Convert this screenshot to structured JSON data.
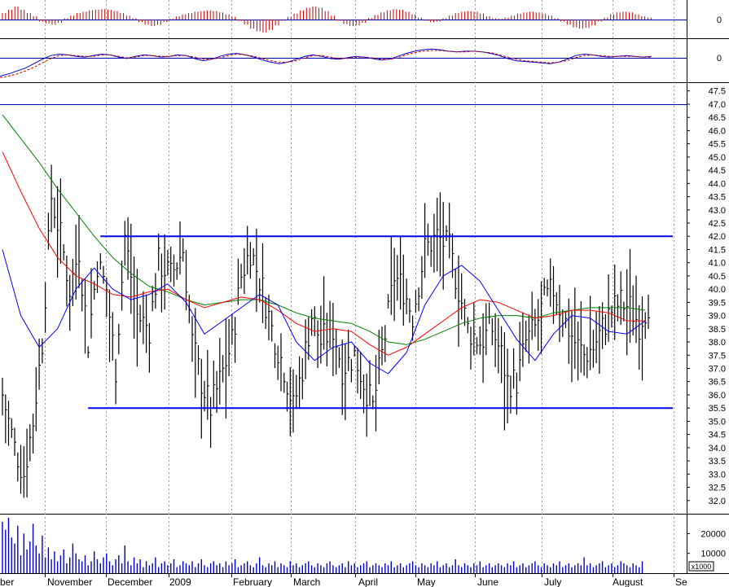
{
  "chart_data": [
    {
      "type": "bar",
      "panel": "oscillator-histogram",
      "zero_label": "0",
      "colors": {
        "bar": "#cc0000",
        "zero_line": "#0000aa"
      },
      "bars": [
        1,
        1.5,
        2,
        1.5,
        1,
        0.5,
        -0.3,
        -0.6,
        -0.8,
        -0.5,
        0.2,
        0.6,
        1,
        1.2,
        1.4,
        1.5,
        1.6,
        1.5,
        1.3,
        1,
        0.6,
        0.2,
        -0.4,
        -0.8,
        -1,
        -0.8,
        -0.4,
        0.1,
        0.5,
        0.8,
        1,
        1.2,
        1.3,
        1.4,
        1.3,
        1.1,
        0.8,
        0.4,
        -0.2,
        -0.8,
        -1.4,
        -1.8,
        -2,
        -1.6,
        -0.9,
        -0.2,
        0.4,
        0.9,
        1.4,
        1.8,
        2,
        1.8,
        1.3,
        0.6,
        -0.2,
        -0.7,
        -1,
        -0.9,
        -0.5,
        0.2,
        0.7,
        1.1,
        1.4,
        1.6,
        1.5,
        1.2,
        0.8,
        0.3,
        -0.2,
        -0.4,
        -0.3,
        0.2,
        0.6,
        1,
        1.2,
        1.3,
        1.2,
        0.9,
        0.5,
        0.2,
        0.1,
        0.3,
        0.6,
        0.9,
        1.1,
        1.2,
        1.1,
        0.9,
        0.6,
        0.2,
        -0.3,
        -0.8,
        -1.2,
        -1.4,
        -1.3,
        -0.9,
        -0.3,
        0.3,
        0.8,
        1.1,
        1.2,
        1.1,
        0.8,
        0.5,
        0.3
      ]
    },
    {
      "type": "line",
      "panel": "oscillator-lines",
      "zero_label": "0",
      "colors": {
        "main": "#0000cc",
        "signal": "#cc0000",
        "zero_line": "#0000aa"
      },
      "series": [
        {
          "role": "main",
          "values": [
            -2.5,
            -2.2,
            -1.8,
            -1.4,
            -0.8,
            -0.2,
            0.3,
            0.5,
            0.4,
            0.2,
            0.1,
            0.3,
            0.5,
            0.4,
            0.1,
            -0.1,
            0.2,
            0.4,
            0.3,
            0.1,
            0.2,
            0.4,
            0.3,
            -0.1,
            -0.4,
            -0.2,
            0.2,
            0.5,
            0.6,
            0.4,
            0.1,
            -0.3,
            -0.6,
            -0.8,
            -0.6,
            -0.2,
            0.2,
            0.4,
            0.2,
            -0.1,
            -0.2,
            0,
            0.2,
            0.1,
            -0.1,
            -0.3,
            -0.2,
            0.2,
            0.6,
            0.9,
            1.1,
            1.2,
            1.1,
            0.9,
            0.8,
            0.9,
            0.9,
            0.8,
            0.6,
            0.3,
            -0.1,
            -0.4,
            -0.5,
            -0.6,
            -0.7,
            -0.8,
            -0.6,
            -0.2,
            0.3,
            0.5,
            0.4,
            0.2,
            0.1,
            0.2,
            0.3,
            0.2,
            0.1,
            0.2
          ]
        },
        {
          "role": "signal",
          "values": [
            -2.7,
            -2.5,
            -2.2,
            -1.8,
            -1.3,
            -0.7,
            -0.1,
            0.3,
            0.4,
            0.3,
            0.2,
            0.2,
            0.4,
            0.4,
            0.2,
            0,
            0.1,
            0.3,
            0.3,
            0.2,
            0.2,
            0.3,
            0.3,
            0.1,
            -0.2,
            -0.2,
            0,
            0.3,
            0.5,
            0.4,
            0.2,
            -0.1,
            -0.4,
            -0.6,
            -0.6,
            -0.4,
            0,
            0.3,
            0.3,
            0.1,
            -0.1,
            -0.1,
            0.1,
            0.1,
            0,
            -0.2,
            -0.2,
            0,
            0.4,
            0.7,
            0.9,
            1,
            1,
            0.9,
            0.8,
            0.8,
            0.9,
            0.8,
            0.7,
            0.4,
            0.1,
            -0.2,
            -0.4,
            -0.5,
            -0.6,
            -0.7,
            -0.6,
            -0.4,
            0,
            0.3,
            0.4,
            0.3,
            0.2,
            0.2,
            0.2,
            0.2,
            0.1,
            0.1
          ]
        }
      ]
    },
    {
      "type": "ohlc",
      "panel": "price",
      "y_ticks": [
        "32.0",
        "32.5",
        "33.0",
        "33.5",
        "34.0",
        "34.5",
        "35.0",
        "35.5",
        "36.0",
        "36.5",
        "37.0",
        "37.5",
        "38.0",
        "38.5",
        "39.0",
        "39.5",
        "40.0",
        "40.5",
        "41.0",
        "41.5",
        "42.0",
        "42.5",
        "43.0",
        "43.5",
        "44.0",
        "44.5",
        "45.0",
        "45.5",
        "46.0",
        "46.5",
        "47.0",
        "47.5"
      ],
      "ylim": [
        31.5,
        47.8
      ],
      "bar_count": 212,
      "colors": {
        "bar": "#000000",
        "ma_fast": "#0000ff",
        "ma_mid": "#ff0000",
        "ma_slow": "#008000",
        "channel": "#0000ff",
        "marker_line": "#0000aa",
        "month_grid": "#999999"
      },
      "marker_line_value": 47.0,
      "channel": {
        "upper": 42.0,
        "lower": 35.5,
        "upper_from_bar": 32,
        "lower_from_bar": 28
      },
      "waypoints": [
        [
          0,
          36
        ],
        [
          4,
          34
        ],
        [
          7,
          33
        ],
        [
          10,
          35
        ],
        [
          13,
          38
        ],
        [
          16,
          43.5
        ],
        [
          19,
          42
        ],
        [
          22,
          40
        ],
        [
          25,
          41.5
        ],
        [
          28,
          38
        ],
        [
          31,
          41
        ],
        [
          34,
          40
        ],
        [
          37,
          37
        ],
        [
          40,
          42
        ],
        [
          44,
          39
        ],
        [
          48,
          38.5
        ],
        [
          51,
          41
        ],
        [
          55,
          40.5
        ],
        [
          59,
          41.5
        ],
        [
          62,
          38
        ],
        [
          65,
          36.5
        ],
        [
          68,
          35.5
        ],
        [
          71,
          36.5
        ],
        [
          75,
          38
        ],
        [
          78,
          40.5
        ],
        [
          81,
          41.5
        ],
        [
          85,
          40
        ],
        [
          88,
          38.5
        ],
        [
          92,
          37
        ],
        [
          95,
          35.5
        ],
        [
          98,
          37
        ],
        [
          101,
          39
        ],
        [
          104,
          38
        ],
        [
          108,
          38.5
        ],
        [
          111,
          37
        ],
        [
          115,
          37.5
        ],
        [
          118,
          36.5
        ],
        [
          121,
          35.5
        ],
        [
          124,
          37.5
        ],
        [
          128,
          40.5
        ],
        [
          131,
          40
        ],
        [
          134,
          39
        ],
        [
          138,
          41.5
        ],
        [
          142,
          42
        ],
        [
          146,
          41.5
        ],
        [
          148,
          40.5
        ],
        [
          152,
          38.5
        ],
        [
          156,
          38
        ],
        [
          160,
          38.5
        ],
        [
          163,
          37.5
        ],
        [
          165,
          36.5
        ],
        [
          168,
          36.5
        ],
        [
          171,
          38
        ],
        [
          174,
          38.5
        ],
        [
          177,
          39.5
        ],
        [
          180,
          40
        ],
        [
          183,
          39
        ],
        [
          187,
          38
        ],
        [
          190,
          37.5
        ],
        [
          193,
          37.8
        ],
        [
          196,
          38.5
        ],
        [
          199,
          39.2
        ],
        [
          202,
          39.5
        ],
        [
          205,
          39.3
        ],
        [
          208,
          38.7
        ],
        [
          211,
          39.5
        ]
      ],
      "ma_fast": [
        [
          0,
          41.5
        ],
        [
          6,
          39
        ],
        [
          12,
          37.8
        ],
        [
          18,
          38.5
        ],
        [
          24,
          40
        ],
        [
          30,
          40.8
        ],
        [
          36,
          40
        ],
        [
          42,
          39.6
        ],
        [
          48,
          39.8
        ],
        [
          54,
          40.2
        ],
        [
          60,
          39.5
        ],
        [
          66,
          38.3
        ],
        [
          72,
          38.8
        ],
        [
          78,
          39.3
        ],
        [
          84,
          39.8
        ],
        [
          90,
          39.4
        ],
        [
          96,
          38
        ],
        [
          102,
          37.3
        ],
        [
          108,
          37.8
        ],
        [
          114,
          38
        ],
        [
          120,
          37.2
        ],
        [
          126,
          36.8
        ],
        [
          132,
          37.6
        ],
        [
          138,
          39.4
        ],
        [
          144,
          40.5
        ],
        [
          150,
          40.9
        ],
        [
          156,
          40.3
        ],
        [
          162,
          39.2
        ],
        [
          168,
          38.1
        ],
        [
          174,
          37.3
        ],
        [
          180,
          38.3
        ],
        [
          186,
          39
        ],
        [
          192,
          38.9
        ],
        [
          198,
          38.4
        ],
        [
          204,
          38.3
        ],
        [
          210,
          38.8
        ]
      ],
      "ma_mid": [
        [
          0,
          45.2
        ],
        [
          6,
          43.7
        ],
        [
          12,
          42.3
        ],
        [
          18,
          41.2
        ],
        [
          24,
          40.5
        ],
        [
          30,
          40.2
        ],
        [
          36,
          39.8
        ],
        [
          42,
          39.7
        ],
        [
          48,
          39.9
        ],
        [
          54,
          40
        ],
        [
          60,
          39.6
        ],
        [
          66,
          39.3
        ],
        [
          72,
          39.5
        ],
        [
          78,
          39.7
        ],
        [
          84,
          39.6
        ],
        [
          90,
          39.2
        ],
        [
          96,
          38.7
        ],
        [
          102,
          38.4
        ],
        [
          108,
          38.5
        ],
        [
          114,
          38.4
        ],
        [
          120,
          37.9
        ],
        [
          126,
          37.5
        ],
        [
          132,
          37.8
        ],
        [
          138,
          38.3
        ],
        [
          144,
          38.8
        ],
        [
          150,
          39.3
        ],
        [
          156,
          39.6
        ],
        [
          162,
          39.5
        ],
        [
          168,
          39.2
        ],
        [
          174,
          38.9
        ],
        [
          180,
          39
        ],
        [
          186,
          39.2
        ],
        [
          192,
          39.2
        ],
        [
          198,
          39.1
        ],
        [
          204,
          38.8
        ],
        [
          210,
          38.8
        ]
      ],
      "ma_slow": [
        [
          0,
          46.6
        ],
        [
          6,
          45.7
        ],
        [
          12,
          44.8
        ],
        [
          18,
          43.8
        ],
        [
          24,
          42.9
        ],
        [
          30,
          42
        ],
        [
          36,
          41.2
        ],
        [
          42,
          40.6
        ],
        [
          48,
          40.1
        ],
        [
          54,
          39.9
        ],
        [
          60,
          39.6
        ],
        [
          66,
          39.4
        ],
        [
          72,
          39.5
        ],
        [
          78,
          39.6
        ],
        [
          84,
          39.6
        ],
        [
          90,
          39.4
        ],
        [
          96,
          39.1
        ],
        [
          102,
          38.9
        ],
        [
          108,
          38.8
        ],
        [
          114,
          38.7
        ],
        [
          120,
          38.4
        ],
        [
          126,
          38
        ],
        [
          132,
          37.9
        ],
        [
          138,
          38.1
        ],
        [
          144,
          38.4
        ],
        [
          150,
          38.7
        ],
        [
          156,
          38.9
        ],
        [
          162,
          39
        ],
        [
          168,
          39
        ],
        [
          174,
          38.9
        ],
        [
          180,
          39.1
        ],
        [
          186,
          39.2
        ],
        [
          192,
          39.3
        ],
        [
          198,
          39.3
        ],
        [
          204,
          39.3
        ],
        [
          210,
          39.2
        ]
      ]
    },
    {
      "type": "bar",
      "panel": "volume",
      "y_ticks": [
        "10000",
        "20000"
      ],
      "multiplier_label": "x1000",
      "colors": {
        "bar": "#0000cc"
      },
      "values": [
        26000,
        22000,
        28000,
        18000,
        15000,
        24000,
        9000,
        20000,
        12000,
        16000,
        25000,
        14000,
        10000,
        19000,
        8000,
        13000,
        7000,
        11000,
        6000,
        9000,
        12000,
        5000,
        8000,
        15000,
        10000,
        7000,
        6000,
        9000,
        4000,
        6000,
        11000,
        7000,
        5000,
        8000,
        10000,
        6000,
        4000,
        7000,
        9000,
        5000,
        14000,
        6000,
        4000,
        8000,
        5000,
        7000,
        3000,
        6000,
        4000,
        5000,
        8000,
        3000,
        5000,
        6000,
        4000,
        5000,
        7000,
        3000,
        4000,
        6000,
        5000,
        4000,
        6000,
        3000,
        5000,
        7000,
        4000,
        3000,
        5000,
        6000,
        4000,
        5000,
        3000,
        6000,
        4000,
        5000,
        7000,
        3000,
        4000,
        5000,
        6000,
        4000,
        3000,
        5000,
        8000,
        4000,
        3000,
        5000,
        4000,
        6000,
        3000,
        5000,
        4000,
        3000,
        6000,
        4000,
        5000,
        3000,
        4000,
        5000,
        6000,
        4000,
        3000,
        5000,
        4000,
        3000,
        5000,
        6000,
        4000,
        3000,
        4000,
        5000,
        3000,
        6000,
        4000,
        5000,
        3000,
        4000,
        5000,
        6000,
        3000,
        4000,
        5000,
        4000,
        3000,
        5000,
        4000,
        6000,
        3000,
        4000,
        5000,
        3000,
        4000,
        5000,
        6000,
        4000,
        3000,
        5000,
        4000,
        3000,
        5000,
        4000,
        6000,
        3000,
        4000,
        5000,
        3000,
        4000,
        7000,
        4000,
        3000,
        5000,
        4000,
        3000,
        5000,
        4000,
        6000,
        3000,
        4000,
        5000,
        3000,
        4000,
        5000,
        4000,
        3000,
        5000,
        4000,
        6000,
        3000,
        4000,
        5000,
        3000,
        4000,
        5000,
        6000,
        4000,
        3000,
        5000,
        4000,
        3000,
        5000,
        4000,
        6000,
        3000,
        4000,
        5000,
        3000,
        4000,
        5000,
        4000,
        8000,
        4000,
        5000,
        3000,
        4000,
        5000,
        6000,
        3000,
        4000,
        5000,
        3000,
        4000,
        6000,
        5000,
        4000,
        3000,
        5000,
        4000,
        3000,
        6000
      ]
    }
  ],
  "x_axis": {
    "months": [
      "ber",
      "November",
      "December",
      "2009",
      "February",
      "March",
      "April",
      "May",
      "June",
      "July",
      "August",
      "Se"
    ]
  }
}
